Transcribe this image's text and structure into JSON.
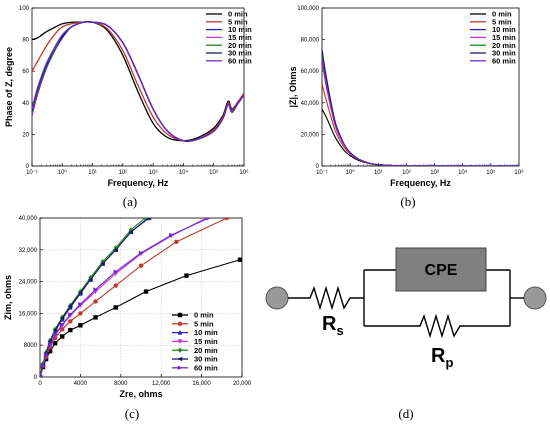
{
  "panels": [
    {
      "id": "a",
      "caption": "(a)",
      "chart_data": {
        "type": "line",
        "title": "",
        "xlabel": "Frequency, Hz",
        "ylabel": "Phase of Z, degree",
        "xscale": "log",
        "xlim": [
          0.1,
          1000000
        ],
        "ylim": [
          0,
          100
        ],
        "xticks": [
          0.1,
          1,
          10,
          100,
          1000,
          10000,
          100000,
          1000000
        ],
        "xtick_labels": [
          "10⁻¹",
          "10⁰",
          "10¹",
          "10²",
          "10³",
          "10⁴",
          "10⁵",
          "10⁶"
        ],
        "yticks": [
          0,
          20,
          40,
          60,
          80,
          100
        ],
        "grid": false,
        "legend": "top-right",
        "series": [
          {
            "name": "0 min",
            "color": "#000000",
            "x": [
              0.1,
              0.15,
              0.3,
              0.6,
              1,
              2,
              5,
              10,
              30,
              100,
              300,
              1000,
              3000,
              10000,
              30000,
              100000,
              200000,
              300000,
              400000,
              600000,
              1000000
            ],
            "y": [
              80,
              81,
              85,
              88,
              90,
              91,
              91,
              91,
              86,
              70,
              48,
              27,
              18,
              16,
              18,
              24,
              32,
              41,
              36,
              40,
              46
            ]
          },
          {
            "name": "5 min",
            "color": "#c0392b",
            "x": [
              0.1,
              0.15,
              0.3,
              0.6,
              1,
              2,
              5,
              10,
              30,
              100,
              300,
              1000,
              3000,
              10000,
              30000,
              100000,
              200000,
              300000,
              400000,
              600000,
              1000000
            ],
            "y": [
              60,
              66,
              76,
              84,
              88,
              90,
              91,
              91,
              87,
              73,
              52,
              31,
              20,
              16,
              17,
              23,
              31,
              40,
              35,
              40,
              46
            ]
          },
          {
            "name": "10 min",
            "color": "#2323c8",
            "x": [
              0.1,
              0.15,
              0.3,
              0.6,
              1,
              2,
              5,
              10,
              30,
              100,
              300,
              1000,
              3000,
              10000,
              30000,
              100000,
              200000,
              300000,
              400000,
              600000,
              1000000
            ],
            "y": [
              32,
              45,
              62,
              74,
              81,
              88,
              91,
              91,
              89,
              78,
              59,
              36,
              22,
              16,
              17,
              22,
              30,
              39,
              34,
              39,
              45
            ]
          },
          {
            "name": "15 min",
            "color": "#cc33cc",
            "x": [
              0.1,
              0.15,
              0.3,
              0.6,
              1,
              2,
              5,
              10,
              30,
              100,
              300,
              1000,
              3000,
              10000,
              30000,
              100000,
              200000,
              300000,
              400000,
              600000,
              1000000
            ],
            "y": [
              33,
              46,
              63,
              75,
              82,
              88,
              91,
              91,
              89,
              78,
              59,
              36,
              22,
              16,
              17,
              22,
              30,
              39,
              34,
              39,
              45
            ]
          },
          {
            "name": "20 min",
            "color": "#1e8a1e",
            "x": [
              0.1,
              0.15,
              0.3,
              0.6,
              1,
              2,
              5,
              10,
              30,
              100,
              300,
              1000,
              3000,
              10000,
              30000,
              100000,
              200000,
              300000,
              400000,
              600000,
              1000000
            ],
            "y": [
              34,
              47,
              63,
              75,
              82,
              88,
              91,
              91,
              89,
              78,
              59,
              36,
              22,
              16,
              17,
              22,
              30,
              39,
              34,
              39,
              45
            ]
          },
          {
            "name": "30 min",
            "color": "#1a1a5e",
            "x": [
              0.1,
              0.15,
              0.3,
              0.6,
              1,
              2,
              5,
              10,
              30,
              100,
              300,
              1000,
              3000,
              10000,
              30000,
              100000,
              200000,
              300000,
              400000,
              600000,
              1000000
            ],
            "y": [
              35,
              48,
              64,
              76,
              82,
              88,
              91,
              91,
              89,
              78,
              59,
              36,
              22,
              16,
              17,
              22,
              30,
              39,
              34,
              39,
              45
            ]
          },
          {
            "name": "60 min",
            "color": "#6a2bc9",
            "x": [
              0.1,
              0.15,
              0.3,
              0.6,
              1,
              2,
              5,
              10,
              30,
              100,
              300,
              1000,
              3000,
              10000,
              30000,
              100000,
              200000,
              300000,
              400000,
              600000,
              1000000
            ],
            "y": [
              36,
              49,
              65,
              76,
              83,
              88,
              91,
              91,
              89,
              78,
              59,
              36,
              22,
              16,
              17,
              22,
              30,
              39,
              34,
              39,
              45
            ]
          }
        ]
      }
    },
    {
      "id": "b",
      "caption": "(b)",
      "chart_data": {
        "type": "line",
        "title": "",
        "xlabel": "Frequency, Hz",
        "ylabel": "|Z|, Ohms",
        "xscale": "log",
        "xlim": [
          0.1,
          1000000
        ],
        "ylim": [
          0,
          100000
        ],
        "xticks": [
          0.1,
          1,
          10,
          100,
          1000,
          10000,
          100000,
          1000000
        ],
        "xtick_labels": [
          "10⁻¹",
          "10⁰",
          "10¹",
          "10²",
          "10³",
          "10⁴",
          "10⁵",
          "10⁶"
        ],
        "yticks": [
          0,
          20000,
          40000,
          60000,
          80000,
          100000
        ],
        "ytick_labels": [
          "0",
          "20,000",
          "40,000",
          "60,000",
          "80,000",
          "100,000"
        ],
        "grid": false,
        "legend": "top-right",
        "series": [
          {
            "name": "0 min",
            "color": "#000000",
            "x": [
              0.1,
              0.15,
              0.3,
              0.6,
              1,
              2,
              5,
              10,
              30,
              100,
              1000000
            ],
            "y": [
              36000,
              30000,
              18000,
              10000,
              6500,
              3500,
              1500,
              800,
              300,
              100,
              10
            ]
          },
          {
            "name": "5 min",
            "color": "#c0392b",
            "x": [
              0.1,
              0.15,
              0.3,
              0.6,
              1,
              2,
              5,
              10,
              30,
              100,
              1000000
            ],
            "y": [
              52000,
              40000,
              22000,
              12000,
              7500,
              4000,
              1600,
              850,
              320,
              110,
              10
            ]
          },
          {
            "name": "10 min",
            "color": "#2323c8",
            "x": [
              0.1,
              0.15,
              0.3,
              0.6,
              1,
              2,
              5,
              10,
              30,
              100,
              1000000
            ],
            "y": [
              72000,
              52000,
              27000,
              14000,
              8500,
              4400,
              1700,
              900,
              330,
              110,
              10
            ]
          },
          {
            "name": "15 min",
            "color": "#cc33cc",
            "x": [
              0.1,
              0.15,
              0.3,
              0.6,
              1,
              2,
              5,
              10,
              30,
              100,
              1000000
            ],
            "y": [
              66000,
              48000,
              25000,
              13500,
              8200,
              4300,
              1700,
              880,
              330,
              110,
              10
            ]
          },
          {
            "name": "20 min",
            "color": "#1e8a1e",
            "x": [
              0.1,
              0.15,
              0.3,
              0.6,
              1,
              2,
              5,
              10,
              30,
              100,
              1000000
            ],
            "y": [
              70000,
              51000,
              26500,
              13800,
              8400,
              4350,
              1700,
              890,
              330,
              110,
              10
            ]
          },
          {
            "name": "30 min",
            "color": "#1a1a5e",
            "x": [
              0.1,
              0.15,
              0.3,
              0.6,
              1,
              2,
              5,
              10,
              30,
              100,
              1000000
            ],
            "y": [
              74000,
              54000,
              27500,
              14200,
              8600,
              4450,
              1720,
              900,
              330,
              110,
              10
            ]
          },
          {
            "name": "60 min",
            "color": "#6a2bc9",
            "x": [
              0.1,
              0.15,
              0.3,
              0.6,
              1,
              2,
              5,
              10,
              30,
              100,
              1000000
            ],
            "y": [
              68000,
              50000,
              26000,
              13700,
              8300,
              4300,
              1700,
              880,
              330,
              110,
              10
            ]
          }
        ]
      }
    },
    {
      "id": "c",
      "caption": "(c)",
      "chart_data": {
        "type": "line",
        "title": "",
        "xlabel": "Zre, ohms",
        "ylabel": "Zim, ohms",
        "xlim": [
          0,
          20000
        ],
        "ylim": [
          0,
          40000
        ],
        "xticks": [
          0,
          4000,
          8000,
          12000,
          16000,
          20000
        ],
        "xtick_labels": [
          "0",
          "4000",
          "8000",
          "12,000",
          "16,000",
          "20,000"
        ],
        "yticks": [
          0,
          8000,
          16000,
          24000,
          32000,
          40000
        ],
        "ytick_labels": [
          "0",
          "8000",
          "16,000",
          "24,000",
          "32,000",
          "40,000"
        ],
        "grid": true,
        "legend": "bottom-right",
        "series": [
          {
            "name": "0 min",
            "color": "#000000",
            "marker": "square",
            "x": [
              0,
              300,
              600,
              1000,
              1500,
              2200,
              3000,
              4000,
              5500,
              7500,
              10500,
              14500,
              19800
            ],
            "y": [
              0,
              2500,
              4500,
              6500,
              8500,
              10200,
              11800,
              13000,
              15000,
              17500,
              21500,
              25500,
              29500
            ]
          },
          {
            "name": "5 min",
            "color": "#c0392b",
            "marker": "circle",
            "x": [
              0,
              300,
              600,
              1000,
              1500,
              2200,
              3000,
              4000,
              5500,
              7500,
              10000,
              13500,
              18500
            ],
            "y": [
              0,
              2800,
              5000,
              7500,
              9800,
              12000,
              14000,
              16000,
              19000,
              23000,
              28000,
              34000,
              40000
            ]
          },
          {
            "name": "10 min",
            "color": "#2323c8",
            "marker": "triangle",
            "x": [
              0,
              300,
              600,
              1000,
              1500,
              2200,
              3000,
              4000,
              5000,
              6200,
              7500,
              9000,
              10700
            ],
            "y": [
              0,
              3200,
              6000,
              9000,
              11500,
              14500,
              17500,
              21000,
              24500,
              28500,
              32000,
              36500,
              40000
            ]
          },
          {
            "name": "15 min",
            "color": "#cc33cc",
            "marker": "triangle-down",
            "x": [
              0,
              300,
              600,
              1000,
              1500,
              2200,
              3000,
              4000,
              5500,
              7500,
              10000,
              13000,
              16500
            ],
            "y": [
              0,
              3000,
              5500,
              8000,
              10500,
              13000,
              15500,
              18000,
              21500,
              26000,
              31000,
              35500,
              40000
            ]
          },
          {
            "name": "20 min",
            "color": "#1e8a1e",
            "marker": "diamond",
            "x": [
              0,
              300,
              600,
              1000,
              1500,
              2200,
              3000,
              4000,
              5000,
              6200,
              7500,
              9000,
              10400
            ],
            "y": [
              0,
              3300,
              6200,
              9200,
              12000,
              15000,
              18000,
              21500,
              25000,
              29000,
              32500,
              37000,
              40000
            ]
          },
          {
            "name": "30 min",
            "color": "#1a1a5e",
            "marker": "triangle-left",
            "x": [
              0,
              300,
              600,
              1000,
              1500,
              2200,
              3000,
              4000,
              5000,
              6200,
              7500,
              9000,
              10800
            ],
            "y": [
              0,
              3200,
              6000,
              9000,
              11800,
              14800,
              17800,
              21200,
              24500,
              28500,
              32000,
              36500,
              40000
            ]
          },
          {
            "name": "60 min",
            "color": "#6a2bc9",
            "marker": "triangle-right",
            "x": [
              0,
              300,
              600,
              1000,
              1500,
              2200,
              3000,
              4000,
              5500,
              7500,
              10000,
              13000,
              16700
            ],
            "y": [
              0,
              3000,
              5600,
              8200,
              10700,
              13200,
              15700,
              18300,
              22000,
              26500,
              31200,
              35700,
              40000
            ]
          }
        ]
      }
    }
  ],
  "circuit": {
    "caption": "(d)",
    "cpe_label": "CPE",
    "rs_label": "R",
    "rs_sub": "s",
    "rp_label": "R",
    "rp_sub": "p",
    "terminal_color": "#999999",
    "cpe_fill": "#808080"
  }
}
